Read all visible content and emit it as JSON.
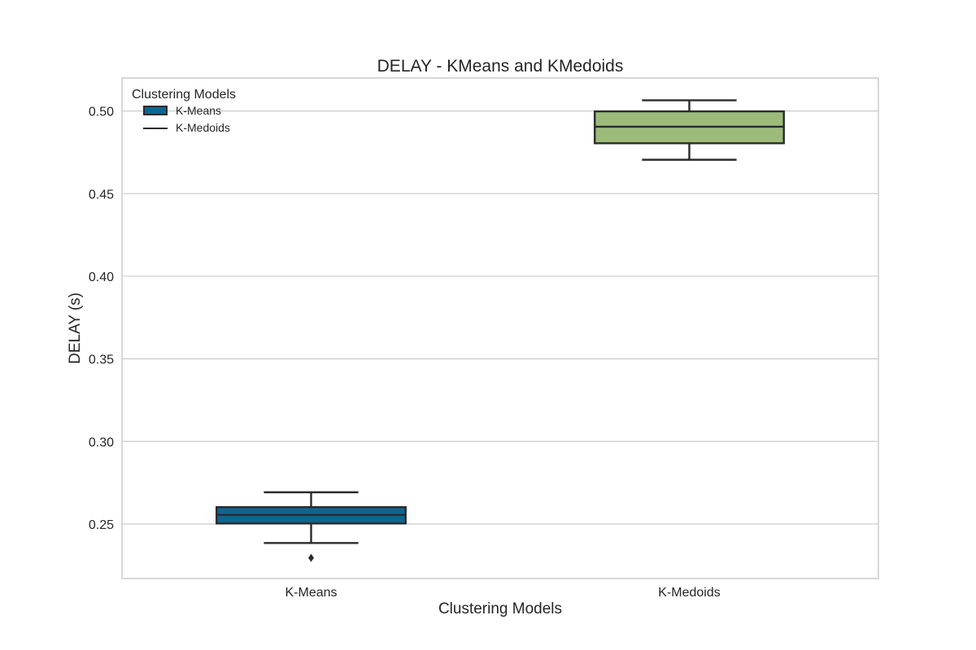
{
  "chart_data": {
    "type": "box",
    "title": "DELAY - KMeans and KMedoids",
    "xlabel": "Clustering Models",
    "ylabel": "DELAY (s)",
    "ylim": [
      0.217,
      0.52
    ],
    "yticks": [
      "0.25",
      "0.30",
      "0.35",
      "0.40",
      "0.45",
      "0.50"
    ],
    "ytick_values": [
      0.25,
      0.3,
      0.35,
      0.4,
      0.45,
      0.5
    ],
    "grid": true,
    "legend": {
      "title": "Clustering Models",
      "placement": "top-left",
      "entries": [
        "K-Means",
        "K-Medoids"
      ]
    },
    "categories": [
      "K-Means",
      "K-Medoids"
    ],
    "boxes": [
      {
        "name": "K-Means",
        "color": "#0d6691",
        "whisker_low": 0.2385,
        "q1": 0.2503,
        "median": 0.2555,
        "q3": 0.2602,
        "whisker_high": 0.2692,
        "outliers": [
          0.2295
        ]
      },
      {
        "name": "K-Medoids",
        "color": "#9cbb7b",
        "whisker_low": 0.4705,
        "q1": 0.4805,
        "median": 0.4905,
        "q3": 0.4998,
        "whisker_high": 0.5065,
        "outliers": []
      }
    ]
  }
}
